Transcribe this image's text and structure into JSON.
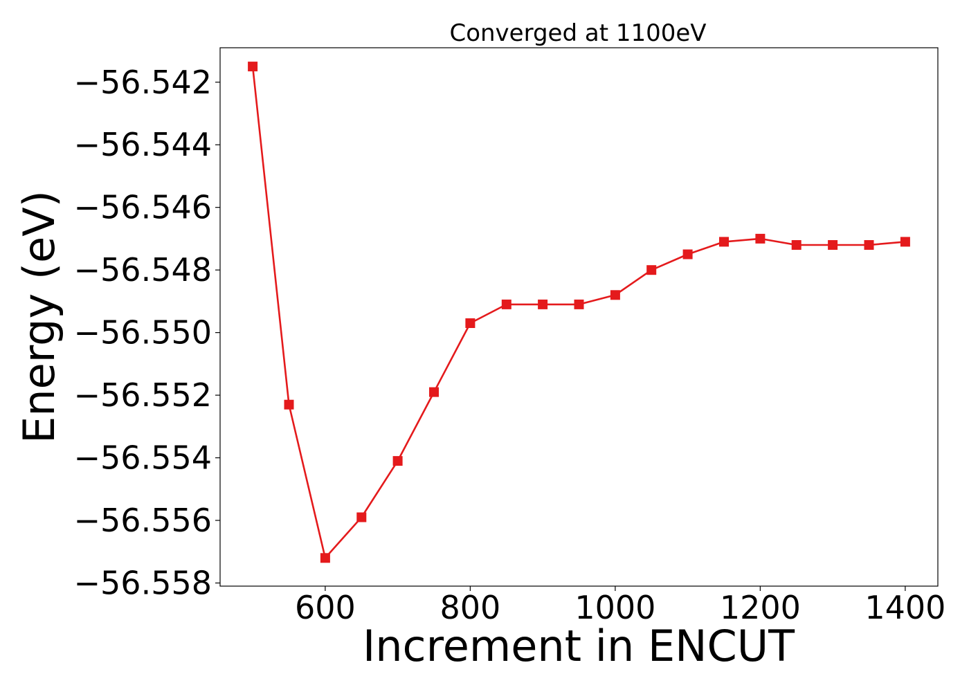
{
  "chart_data": {
    "type": "line",
    "title": "Converged at 1100eV",
    "xlabel": "Increment in ENCUT",
    "ylabel": "Energy (eV)",
    "xlim": [
      455,
      1445
    ],
    "ylim": [
      -56.5581,
      -56.5409
    ],
    "x_ticks": [
      600,
      800,
      1000,
      1200,
      1400
    ],
    "x_tick_labels": [
      "600",
      "800",
      "1000",
      "1200",
      "1400"
    ],
    "y_ticks": [
      -56.542,
      -56.544,
      -56.546,
      -56.548,
      -56.55,
      -56.552,
      -56.554,
      -56.556,
      -56.558
    ],
    "y_tick_labels": [
      "−56.542",
      "−56.544",
      "−56.546",
      "−56.548",
      "−56.550",
      "−56.552",
      "−56.554",
      "−56.556",
      "−56.558"
    ],
    "grid": false,
    "colors": {
      "series": "#e41a1c",
      "axes": "#000000"
    },
    "series": [
      {
        "marker": "square",
        "x": [
          500,
          550,
          600,
          650,
          700,
          750,
          800,
          850,
          900,
          950,
          1000,
          1050,
          1100,
          1150,
          1200,
          1250,
          1300,
          1350,
          1400
        ],
        "y": [
          -56.5415,
          -56.5523,
          -56.5572,
          -56.5559,
          -56.5541,
          -56.5519,
          -56.5497,
          -56.5491,
          -56.5491,
          -56.5491,
          -56.5488,
          -56.548,
          -56.5475,
          -56.5471,
          -56.547,
          -56.5472,
          -56.5472,
          -56.5472,
          -56.5471
        ]
      }
    ]
  }
}
